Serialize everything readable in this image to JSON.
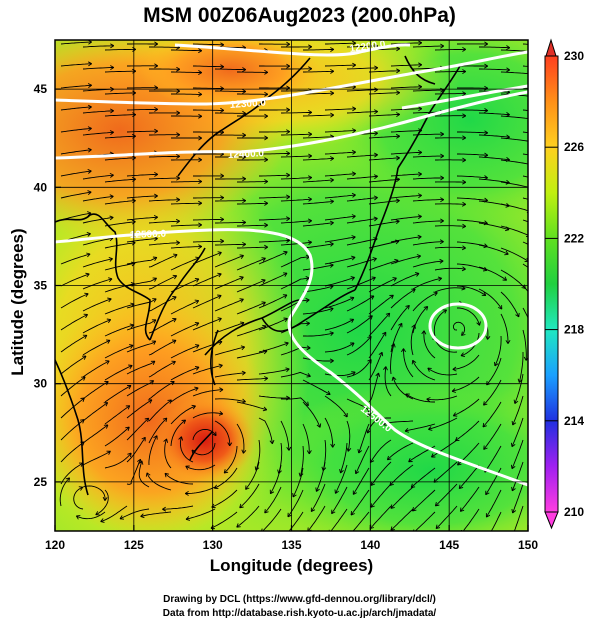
{
  "title": "MSM 00Z06Aug2023 (200.0hPa)",
  "x_axis": {
    "label": "Longitude (degrees)",
    "min": 120,
    "max": 150,
    "ticks": [
      "120",
      "125",
      "130",
      "135",
      "140",
      "145",
      "150"
    ]
  },
  "y_axis": {
    "label": "Latitude  (degrees)",
    "min": 22.5,
    "max": 47.5,
    "ticks": [
      "25",
      "30",
      "35",
      "40",
      "45"
    ]
  },
  "colorbar": {
    "min": 210,
    "max": 230,
    "ticks": [
      "210",
      "214",
      "218",
      "222",
      "226",
      "230"
    ],
    "colors": [
      "#ff3de0",
      "#a020f0",
      "#2030e0",
      "#1aa0ff",
      "#20e8c0",
      "#20d040",
      "#60e020",
      "#c0f010",
      "#ffd020",
      "#ff9018",
      "#ff4020"
    ]
  },
  "contours": [
    {
      "label": "12200.0"
    },
    {
      "label": "12300.0"
    },
    {
      "label": "12400.0"
    },
    {
      "label": "12500.0"
    },
    {
      "label": "12500.0"
    }
  ],
  "credits": {
    "line1": "Drawing by DCL (https://www.gfd-dennou.org/library/dcl/)",
    "line2": "Data from http://database.rish.kyoto-u.ac.jp/arch/jmadata/"
  },
  "field_colors": {
    "hot": "#e8401a",
    "warm": "#ff9a20",
    "yellow": "#f0e020",
    "green": "#30d840",
    "cool": "#28e070"
  }
}
